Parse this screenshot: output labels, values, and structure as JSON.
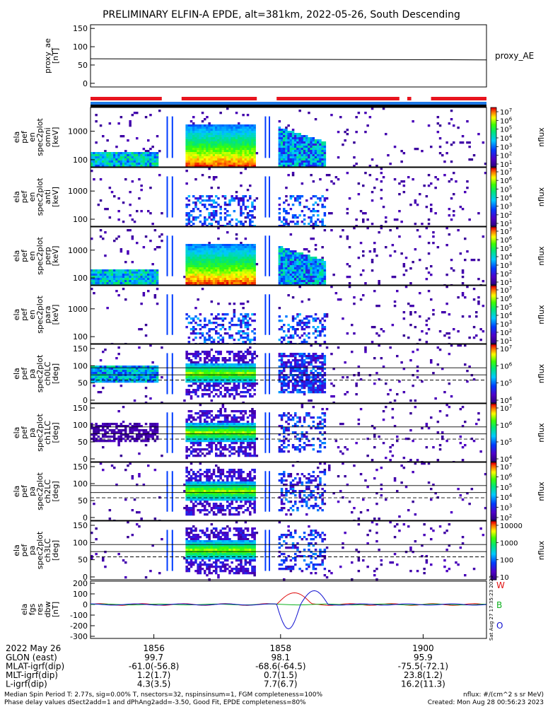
{
  "title": "PRELIMINARY ELFIN-A EPDE, alt=381km, 2022-05-26, South Descending",
  "colors": {
    "bar_red": "#e8141e",
    "bar_blue": "#1e78e6",
    "bar_black": "#000000",
    "b_red": "#e01010",
    "b_green": "#10b020",
    "b_blue": "#1010d0"
  },
  "chart_data": [
    {
      "type": "line",
      "ylabel": "proxy_ae\n[nT]",
      "yticks": [
        "150",
        "100",
        "50",
        "0"
      ],
      "ylim": [
        -10,
        160
      ],
      "series": [
        {
          "name": "proxy_AE",
          "x": [
            0,
            1
          ],
          "values": [
            67,
            64
          ]
        }
      ],
      "legend": "proxy_AE"
    },
    {
      "type": "bar",
      "name": "status-bars",
      "red_segments": [
        [
          0.0,
          0.18
        ],
        [
          0.23,
          0.42
        ],
        [
          0.47,
          0.78
        ],
        [
          0.8,
          0.81
        ],
        [
          0.86,
          1.0
        ]
      ],
      "black_segments": [
        [
          0.0,
          1.0
        ]
      ]
    },
    {
      "type": "heatmap",
      "ylabel": [
        "ela",
        "pef",
        "en",
        "spec2plot",
        "omni",
        "[keV]"
      ],
      "yticks": [
        "1000",
        "100"
      ],
      "cb_ticks": [
        "10^7",
        "10^6",
        "10^5",
        "10^4",
        "10^3",
        "10^2",
        "10^1"
      ],
      "cb_label": "nflux"
    },
    {
      "type": "heatmap",
      "ylabel": [
        "ela",
        "pef",
        "en",
        "spec2plot",
        "anti",
        "[keV]"
      ],
      "yticks": [
        "1000",
        "100"
      ],
      "cb_ticks": [
        "10^7",
        "10^6",
        "10^5",
        "10^4",
        "10^3",
        "10^2",
        "10^1"
      ],
      "cb_label": "nflux"
    },
    {
      "type": "heatmap",
      "ylabel": [
        "ela",
        "pef",
        "en",
        "spec2plot",
        "perp",
        "[keV]"
      ],
      "yticks": [
        "1000",
        "100"
      ],
      "cb_ticks": [
        "10^7",
        "10^6",
        "10^5",
        "10^4",
        "10^3",
        "10^2",
        "10^1"
      ],
      "cb_label": "nflux"
    },
    {
      "type": "heatmap",
      "ylabel": [
        "ela",
        "pef",
        "en",
        "spec2plot",
        "para",
        "[keV]"
      ],
      "yticks": [
        "1000",
        "100"
      ],
      "cb_ticks": [
        "10^7",
        "10^6",
        "10^5",
        "10^4",
        "10^3",
        "10^2",
        "10^1"
      ],
      "cb_label": "nflux"
    },
    {
      "type": "heatmap",
      "ylabel": [
        "ela",
        "pef",
        "pa",
        "spec2plot",
        "ch0LC",
        "[deg]"
      ],
      "yticks": [
        "150",
        "100",
        "50",
        "0"
      ],
      "cb_ticks": [
        "10^7",
        "10^6",
        "10^5",
        "10^4"
      ],
      "cb_label": "nflux"
    },
    {
      "type": "heatmap",
      "ylabel": [
        "ela",
        "pef",
        "pa",
        "spec2plot",
        "ch1LC",
        "[deg]"
      ],
      "yticks": [
        "150",
        "100",
        "50",
        "0"
      ],
      "cb_ticks": [
        "10^7",
        "10^6",
        "10^5",
        "10^4"
      ],
      "cb_label": "nflux"
    },
    {
      "type": "heatmap",
      "ylabel": [
        "ela",
        "pef",
        "pa",
        "spec2plot",
        "ch2LC",
        "[deg]"
      ],
      "yticks": [
        "150",
        "100",
        "50",
        "0"
      ],
      "cb_ticks": [
        "10^7",
        "10^6",
        "10^5",
        "10^4",
        "10^3",
        "10^2"
      ],
      "cb_label": "nflux"
    },
    {
      "type": "heatmap",
      "ylabel": [
        "ela",
        "pef",
        "pa",
        "spec2plot",
        "ch3LC",
        "[deg]"
      ],
      "yticks": [
        "150",
        "100",
        "50",
        "0"
      ],
      "cb_ticks": [
        "10000",
        "1000",
        "100",
        "10"
      ],
      "cb_label": "nflux"
    },
    {
      "type": "line",
      "ylabel": [
        "ela",
        "fgs",
        "res",
        "dbw",
        "[nT]"
      ],
      "yticks": [
        "200",
        "100",
        "0",
        "-100",
        "-200",
        "-300"
      ],
      "ylim": [
        -320,
        220
      ],
      "legend": [
        "W",
        "B",
        "O"
      ],
      "side_text": "Sat Aug 27 17:35:23 2023"
    }
  ],
  "xaxis": {
    "ticks": [
      "1856",
      "1858",
      "1900"
    ],
    "date_label": "2022 May 26",
    "rows": [
      {
        "label": "GLON (east)",
        "values": [
          "99.7",
          "98.1",
          "95.9"
        ]
      },
      {
        "label": "MLAT-igrf(dip)",
        "values": [
          "-61.0(-56.8)",
          "-68.6(-64.5)",
          "-75.5(-72.1)"
        ]
      },
      {
        "label": "MLT-igrf(dip)",
        "values": [
          "1.2(1.7)",
          "0.7(1.5)",
          "23.8(1.2)"
        ]
      },
      {
        "label": "L-igrf(dip)",
        "values": [
          "4.3(3.5)",
          "7.7(6.7)",
          "16.2(11.3)"
        ]
      }
    ]
  },
  "footer": {
    "line1": "Median Spin Period T: 2.77s, sig=0.00% T, nsectors=32, nspinsinsum=1, FGM completeness=100%",
    "line2": "Phase delay values dSect2add=1 and dPhAng2add=-3.50, Good Fit, EPDE completeness=80%",
    "right1": "nflux: #/(cm^2 s sr MeV)",
    "right2": "Created: Mon Aug 28 00:56:23 2023"
  }
}
